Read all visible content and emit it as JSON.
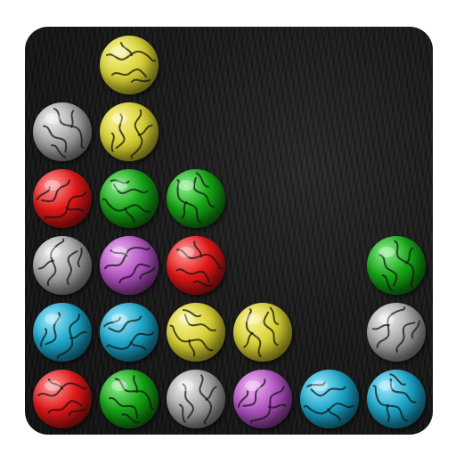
{
  "game": {
    "grid": {
      "columns": 6,
      "rows": 6
    },
    "colors": {
      "yellow": {
        "light": "#fbf49a",
        "mid": "#d8d238",
        "dark": "#8a8414"
      },
      "gray": {
        "light": "#f2f2f2",
        "mid": "#a5a5a5",
        "dark": "#5a5a5a"
      },
      "red": {
        "light": "#ff9c9c",
        "mid": "#e21818",
        "dark": "#7a0808"
      },
      "green": {
        "light": "#8ef08e",
        "mid": "#16a316",
        "dark": "#065306"
      },
      "purple": {
        "light": "#f0b6f4",
        "mid": "#b354c2",
        "dark": "#5e1e6a"
      },
      "blue": {
        "light": "#9eeaff",
        "mid": "#1ea6c8",
        "dark": "#0a5670"
      }
    },
    "balls": [
      {
        "col": 1,
        "row": 0,
        "color": "yellow"
      },
      {
        "col": 0,
        "row": 1,
        "color": "gray"
      },
      {
        "col": 1,
        "row": 1,
        "color": "yellow"
      },
      {
        "col": 0,
        "row": 2,
        "color": "red"
      },
      {
        "col": 1,
        "row": 2,
        "color": "green"
      },
      {
        "col": 2,
        "row": 2,
        "color": "green"
      },
      {
        "col": 0,
        "row": 3,
        "color": "gray"
      },
      {
        "col": 1,
        "row": 3,
        "color": "purple"
      },
      {
        "col": 2,
        "row": 3,
        "color": "red"
      },
      {
        "col": 5,
        "row": 3,
        "color": "green"
      },
      {
        "col": 0,
        "row": 4,
        "color": "blue"
      },
      {
        "col": 1,
        "row": 4,
        "color": "blue"
      },
      {
        "col": 2,
        "row": 4,
        "color": "yellow"
      },
      {
        "col": 3,
        "row": 4,
        "color": "yellow"
      },
      {
        "col": 5,
        "row": 4,
        "color": "gray"
      },
      {
        "col": 0,
        "row": 5,
        "color": "red"
      },
      {
        "col": 1,
        "row": 5,
        "color": "green"
      },
      {
        "col": 2,
        "row": 5,
        "color": "gray"
      },
      {
        "col": 3,
        "row": 5,
        "color": "purple"
      },
      {
        "col": 4,
        "row": 5,
        "color": "blue"
      },
      {
        "col": 5,
        "row": 5,
        "color": "blue"
      }
    ]
  }
}
